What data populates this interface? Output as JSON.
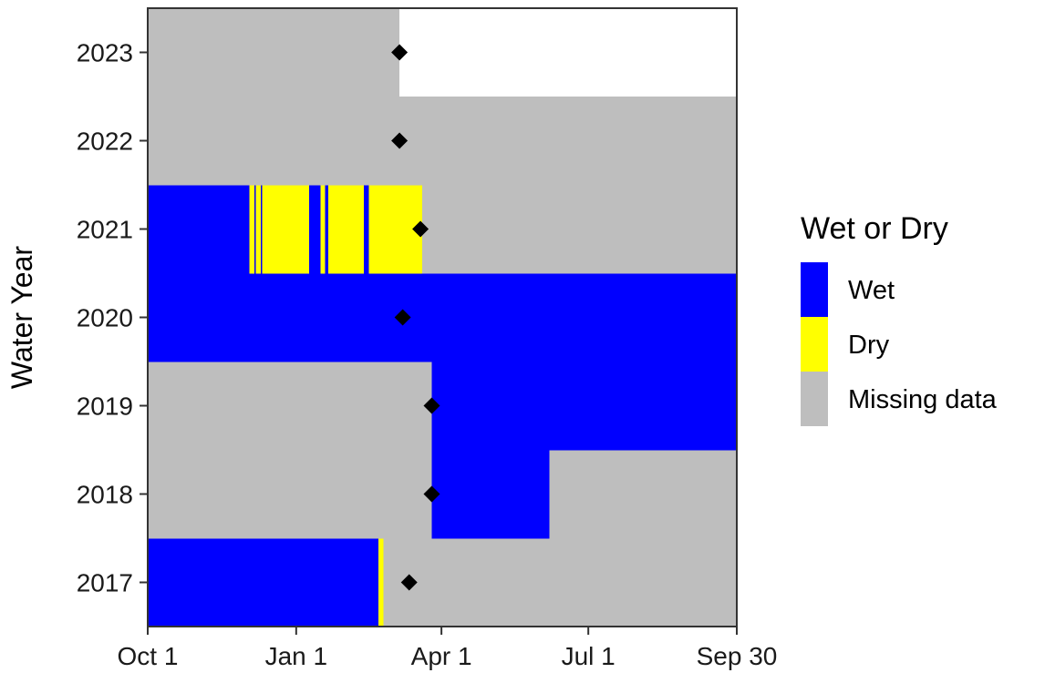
{
  "chart_data": {
    "type": "heatmap",
    "ylabel": "Water Year",
    "xlabel": "",
    "x_domain_days": [
      0,
      365
    ],
    "x_ticks": [
      {
        "day": 0,
        "label": "Oct 1"
      },
      {
        "day": 92,
        "label": "Jan 1"
      },
      {
        "day": 182,
        "label": "Apr 1"
      },
      {
        "day": 273,
        "label": "Jul 1"
      },
      {
        "day": 365,
        "label": "Sep 30"
      }
    ],
    "years": [
      2017,
      2018,
      2019,
      2020,
      2021,
      2022,
      2023
    ],
    "colors": {
      "Wet": "#0000ff",
      "Dry": "#ffff00",
      "Missing data": "#bebebe"
    },
    "legend": {
      "title": "Wet or Dry",
      "entries": [
        {
          "label": "Wet",
          "color": "#0000ff"
        },
        {
          "label": "Dry",
          "color": "#ffff00"
        },
        {
          "label": "Missing data",
          "color": "#bebebe"
        }
      ]
    },
    "rows": [
      {
        "year": 2017,
        "segments": [
          {
            "start": 0,
            "end": 143,
            "status": "Wet"
          },
          {
            "start": 143,
            "end": 146,
            "status": "Dry"
          },
          {
            "start": 146,
            "end": 365,
            "status": "Missing data"
          }
        ]
      },
      {
        "year": 2018,
        "segments": [
          {
            "start": 0,
            "end": 176,
            "status": "Missing data"
          },
          {
            "start": 176,
            "end": 249,
            "status": "Wet"
          },
          {
            "start": 249,
            "end": 365,
            "status": "Missing data"
          }
        ]
      },
      {
        "year": 2019,
        "segments": [
          {
            "start": 0,
            "end": 176,
            "status": "Missing data"
          },
          {
            "start": 176,
            "end": 365,
            "status": "Wet"
          }
        ]
      },
      {
        "year": 2020,
        "segments": [
          {
            "start": 0,
            "end": 365,
            "status": "Wet"
          }
        ]
      },
      {
        "year": 2021,
        "segments": [
          {
            "start": 0,
            "end": 63,
            "status": "Wet"
          },
          {
            "start": 63,
            "end": 66,
            "status": "Dry"
          },
          {
            "start": 66,
            "end": 67,
            "status": "Wet"
          },
          {
            "start": 67,
            "end": 70,
            "status": "Dry"
          },
          {
            "start": 70,
            "end": 71,
            "status": "Wet"
          },
          {
            "start": 71,
            "end": 100,
            "status": "Dry"
          },
          {
            "start": 100,
            "end": 107,
            "status": "Wet"
          },
          {
            "start": 107,
            "end": 110,
            "status": "Dry"
          },
          {
            "start": 110,
            "end": 112,
            "status": "Wet"
          },
          {
            "start": 112,
            "end": 134,
            "status": "Dry"
          },
          {
            "start": 134,
            "end": 137,
            "status": "Wet"
          },
          {
            "start": 137,
            "end": 170,
            "status": "Dry"
          },
          {
            "start": 170,
            "end": 365,
            "status": "Missing data"
          }
        ]
      },
      {
        "year": 2022,
        "segments": [
          {
            "start": 0,
            "end": 365,
            "status": "Missing data"
          }
        ]
      },
      {
        "year": 2023,
        "segments": [
          {
            "start": 0,
            "end": 156,
            "status": "Missing data"
          }
        ]
      }
    ],
    "markers": [
      {
        "year": 2017,
        "day": 162
      },
      {
        "year": 2018,
        "day": 176
      },
      {
        "year": 2019,
        "day": 176
      },
      {
        "year": 2020,
        "day": 158
      },
      {
        "year": 2021,
        "day": 169
      },
      {
        "year": 2022,
        "day": 156
      },
      {
        "year": 2023,
        "day": 156
      }
    ]
  }
}
